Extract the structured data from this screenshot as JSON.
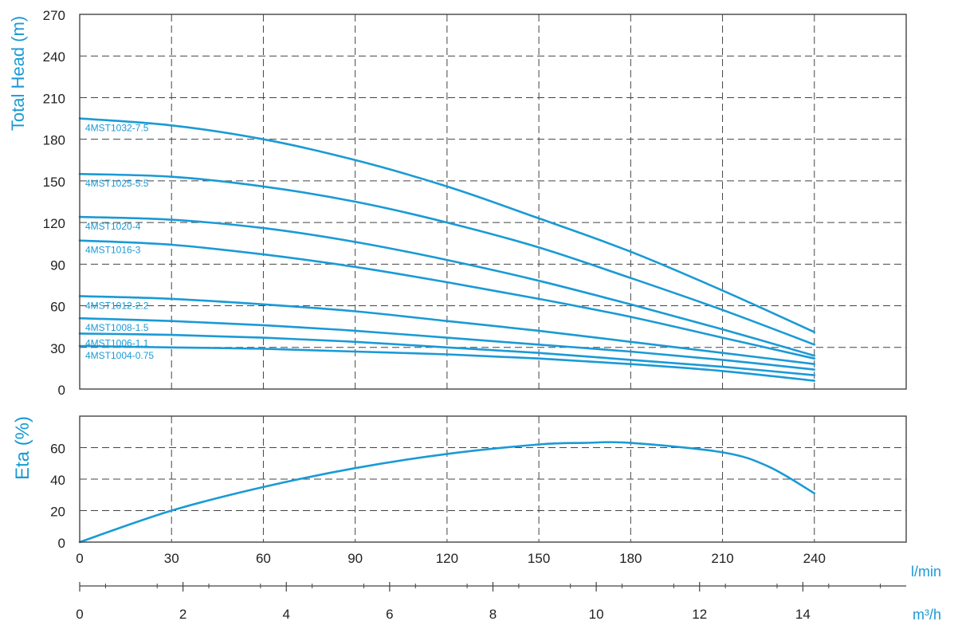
{
  "chart_data": [
    {
      "type": "line",
      "ylabel": "Total Head (m)",
      "xlim": [
        0,
        270
      ],
      "ylim": [
        0,
        270
      ],
      "yticks": [
        0,
        30,
        60,
        90,
        120,
        150,
        180,
        210,
        240,
        270
      ],
      "xgrid": [
        30,
        60,
        90,
        120,
        150,
        180,
        210,
        240
      ],
      "grid": true,
      "color": "#1a9ad6",
      "series": [
        {
          "name": "4MST1032-7.5",
          "x": [
            0,
            30,
            60,
            90,
            120,
            150,
            180,
            210,
            240
          ],
          "y": [
            195,
            190,
            180,
            165,
            146,
            123,
            99,
            71,
            41
          ]
        },
        {
          "name": "4MST1025-5.5",
          "x": [
            0,
            30,
            60,
            90,
            120,
            150,
            180,
            210,
            240
          ],
          "y": [
            155,
            153,
            146,
            135,
            120,
            102,
            80,
            57,
            32
          ]
        },
        {
          "name": "4MST1020-4",
          "x": [
            0,
            30,
            60,
            90,
            120,
            150,
            180,
            210,
            240
          ],
          "y": [
            124,
            122,
            116,
            106,
            93,
            78,
            61,
            43,
            24
          ]
        },
        {
          "name": "4MST1016-3",
          "x": [
            0,
            30,
            60,
            90,
            120,
            150,
            180,
            210,
            240
          ],
          "y": [
            107,
            104,
            97,
            88,
            77,
            65,
            52,
            37,
            22
          ]
        },
        {
          "name": "4MST1012-2.2",
          "x": [
            0,
            30,
            60,
            90,
            120,
            150,
            180,
            210,
            240
          ],
          "y": [
            67,
            65,
            61,
            56,
            49,
            42,
            34,
            26,
            18
          ]
        },
        {
          "name": "4MST1008-1.5",
          "x": [
            0,
            30,
            60,
            90,
            120,
            150,
            180,
            210,
            240
          ],
          "y": [
            51,
            49,
            46,
            42,
            37,
            32,
            27,
            21,
            14
          ]
        },
        {
          "name": "4MST1006-1.1",
          "x": [
            0,
            30,
            60,
            90,
            120,
            150,
            180,
            210,
            240
          ],
          "y": [
            40,
            39,
            37,
            34,
            30,
            26,
            21,
            16,
            10
          ]
        },
        {
          "name": "4MST1004-0.75",
          "x": [
            0,
            30,
            60,
            90,
            120,
            150,
            180,
            210,
            240
          ],
          "y": [
            31,
            30,
            29,
            27,
            25,
            22,
            18,
            13,
            6
          ]
        }
      ]
    },
    {
      "type": "line",
      "ylabel": "Eta (%)",
      "xlim": [
        0,
        270
      ],
      "ylim": [
        0,
        80
      ],
      "yticks": [
        0,
        20,
        40,
        60
      ],
      "ygrid": [
        20,
        40,
        60,
        80
      ],
      "grid": true,
      "color": "#1a9ad6",
      "series": [
        {
          "name": "",
          "x": [
            0,
            30,
            60,
            90,
            120,
            150,
            165,
            180,
            210,
            225,
            240
          ],
          "y": [
            0,
            20,
            35,
            47,
            56,
            62,
            63,
            63,
            57,
            48,
            31
          ]
        }
      ]
    }
  ],
  "x_axis_lmin": {
    "unit": "l/min",
    "ticks": [
      0,
      30,
      60,
      90,
      120,
      150,
      180,
      210,
      240
    ]
  },
  "x_axis_m3h": {
    "unit": "m³/h",
    "ticks": [
      0,
      2,
      4,
      6,
      8,
      10,
      12,
      14
    ],
    "max": 16
  }
}
